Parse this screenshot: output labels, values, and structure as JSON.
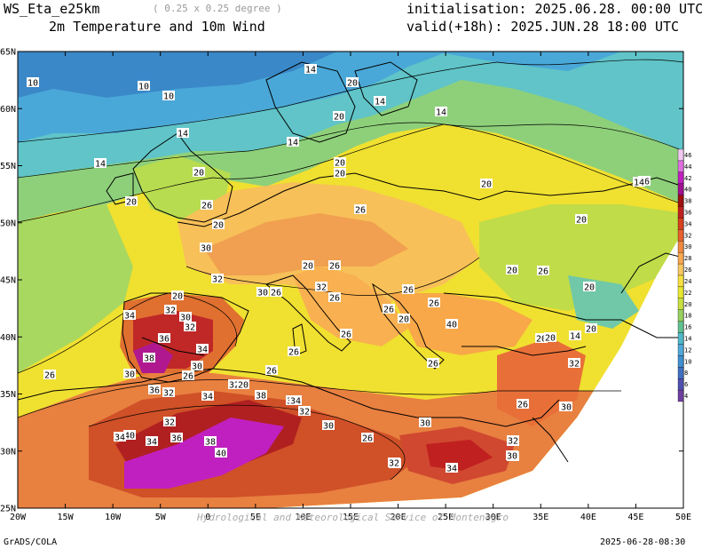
{
  "header": {
    "model": "WS_Eta_e25km",
    "resolution": "( 0.25 x 0.25 degree )",
    "field": "2m Temperature and 10m Wind",
    "init": "initialisation: 2025.06.28. 00:00 UTC",
    "valid": "valid(+18h): 2025.JUN.28 18:00 UTC"
  },
  "footer": {
    "left": "GrADS/COLA",
    "right": "2025-06-28-08:30"
  },
  "watermark": "Hydrological and Meteorological Service of Montenegro",
  "axes": {
    "lat_labels": [
      "65N",
      "60N",
      "55N",
      "50N",
      "45N",
      "40N",
      "35N",
      "30N",
      "25N"
    ],
    "lon_labels": [
      "20W",
      "15W",
      "10W",
      "5W",
      "0",
      "5E",
      "10E",
      "15E",
      "20E",
      "25E",
      "30E",
      "35E",
      "40E",
      "45E",
      "50E"
    ]
  },
  "colorbar": {
    "labels": [
      "46",
      "44",
      "42",
      "40",
      "38",
      "36",
      "34",
      "32",
      "30",
      "28",
      "26",
      "24",
      "22",
      "20",
      "18",
      "16",
      "14",
      "12",
      "10",
      "8",
      "6",
      "4"
    ],
    "colors": [
      "#f0c8f0",
      "#e070e0",
      "#c020c0",
      "#a01090",
      "#a01010",
      "#c02020",
      "#d84020",
      "#e86030",
      "#f08840",
      "#f8a850",
      "#f8c860",
      "#f8e040",
      "#e8e830",
      "#c8e040",
      "#98d060",
      "#60c090",
      "#50b8c8",
      "#50a8d8",
      "#4090d0",
      "#4070c0",
      "#5050b0",
      "#7040a0"
    ]
  },
  "contour_labels": [
    {
      "t": "10"
    },
    {
      "t": "10"
    },
    {
      "t": "10"
    },
    {
      "t": "14"
    },
    {
      "t": "14"
    },
    {
      "t": "14"
    },
    {
      "t": "14"
    },
    {
      "t": "14"
    },
    {
      "t": "14"
    },
    {
      "t": "20"
    },
    {
      "t": "20"
    },
    {
      "t": "20"
    },
    {
      "t": "20"
    },
    {
      "t": "20"
    },
    {
      "t": "20"
    },
    {
      "t": "20"
    },
    {
      "t": "20"
    },
    {
      "t": "20"
    },
    {
      "t": "26"
    },
    {
      "t": "26"
    },
    {
      "t": "30"
    },
    {
      "t": "32"
    },
    {
      "t": "30"
    },
    {
      "t": "26"
    },
    {
      "t": "20"
    },
    {
      "t": "26"
    },
    {
      "t": "32"
    },
    {
      "t": "26"
    },
    {
      "t": "26"
    },
    {
      "t": "26"
    },
    {
      "t": "20"
    },
    {
      "t": "26"
    },
    {
      "t": "20"
    },
    {
      "t": "20"
    },
    {
      "t": "20"
    },
    {
      "t": "14"
    },
    {
      "t": "20"
    },
    {
      "t": "34"
    },
    {
      "t": "32"
    },
    {
      "t": "30"
    },
    {
      "t": "32"
    },
    {
      "t": "36"
    },
    {
      "t": "34"
    },
    {
      "t": "38"
    },
    {
      "t": "30"
    },
    {
      "t": "26"
    },
    {
      "t": "30"
    },
    {
      "t": "36"
    },
    {
      "t": "32"
    },
    {
      "t": "34"
    },
    {
      "t": "32"
    },
    {
      "t": "20"
    },
    {
      "t": "38"
    },
    {
      "t": "36"
    },
    {
      "t": "34"
    },
    {
      "t": "32"
    },
    {
      "t": "30"
    },
    {
      "t": "26"
    },
    {
      "t": "26"
    },
    {
      "t": "26"
    },
    {
      "t": "26"
    },
    {
      "t": "26"
    },
    {
      "t": "32"
    },
    {
      "t": "30"
    },
    {
      "t": "30"
    },
    {
      "t": "26"
    },
    {
      "t": "32"
    },
    {
      "t": "30"
    },
    {
      "t": "32"
    },
    {
      "t": "34"
    },
    {
      "t": "36"
    },
    {
      "t": "38"
    },
    {
      "t": "40"
    },
    {
      "t": "34"
    },
    {
      "t": "32"
    },
    {
      "t": "40"
    },
    {
      "t": "34"
    },
    {
      "t": "26"
    },
    {
      "t": "40"
    },
    {
      "t": "20"
    },
    {
      "t": "26"
    },
    {
      "t": "26"
    },
    {
      "t": "20"
    },
    {
      "t": "14"
    },
    {
      "t": "32"
    },
    {
      "t": "30"
    },
    {
      "t": "30"
    },
    {
      "t": "32"
    }
  ]
}
